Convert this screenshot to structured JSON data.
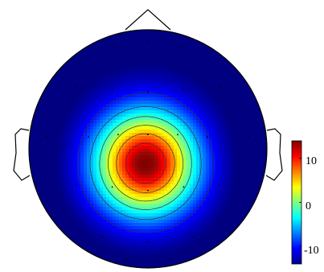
{
  "chart_data": {
    "type": "heatmap",
    "subtype": "eeg-scalp-topography",
    "title": "",
    "colormap": "jet",
    "color_range": [
      -14,
      14
    ],
    "colorbar": {
      "ticks": [
        {
          "value": 10,
          "label": "10"
        },
        {
          "value": 0,
          "label": "0"
        },
        {
          "value": -10,
          "label": "-10"
        }
      ]
    },
    "peak_value": 14,
    "contour_levels": [
      -10,
      -6,
      -2,
      2,
      6,
      10,
      13
    ],
    "head_outline": {
      "nose": true,
      "ears": true
    },
    "electrodes": [
      {
        "x": -0.28,
        "y": 0.86
      },
      {
        "x": 0.0,
        "y": 0.9
      },
      {
        "x": 0.28,
        "y": 0.86
      },
      {
        "x": -0.6,
        "y": 0.52
      },
      {
        "x": -0.3,
        "y": 0.5
      },
      {
        "x": 0.0,
        "y": 0.48
      },
      {
        "x": 0.3,
        "y": 0.5
      },
      {
        "x": 0.6,
        "y": 0.52
      },
      {
        "x": -0.85,
        "y": 0.1
      },
      {
        "x": -0.5,
        "y": 0.1
      },
      {
        "x": -0.25,
        "y": 0.12
      },
      {
        "x": 0.0,
        "y": 0.12
      },
      {
        "x": 0.25,
        "y": 0.12
      },
      {
        "x": 0.5,
        "y": 0.1
      },
      {
        "x": 0.85,
        "y": 0.1
      },
      {
        "x": -0.6,
        "y": -0.3
      },
      {
        "x": -0.3,
        "y": -0.32
      },
      {
        "x": 0.0,
        "y": -0.35
      },
      {
        "x": 0.3,
        "y": -0.32
      },
      {
        "x": 0.6,
        "y": -0.3
      },
      {
        "x": -0.38,
        "y": -0.74
      },
      {
        "x": 0.0,
        "y": -0.78
      },
      {
        "x": 0.38,
        "y": -0.74
      },
      {
        "x": -0.18,
        "y": -0.93
      },
      {
        "x": 0.18,
        "y": -0.93
      }
    ]
  }
}
